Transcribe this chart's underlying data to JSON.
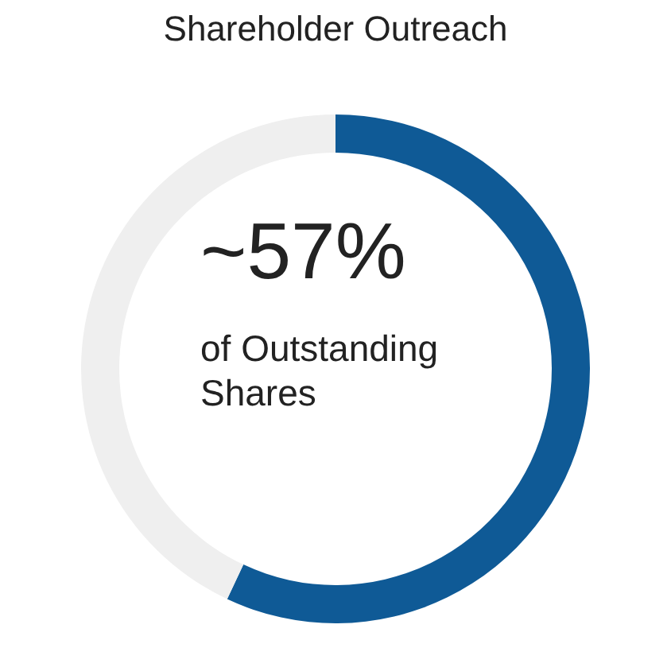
{
  "chart_data": {
    "type": "donut",
    "title": "Shareholder Outreach",
    "categories": [
      null,
      null
    ],
    "values": [
      57,
      43
    ],
    "colors": [
      "#0f5a96",
      "#efefef"
    ],
    "annotations": [
      "~57%",
      "of Outstanding Shares"
    ]
  }
}
